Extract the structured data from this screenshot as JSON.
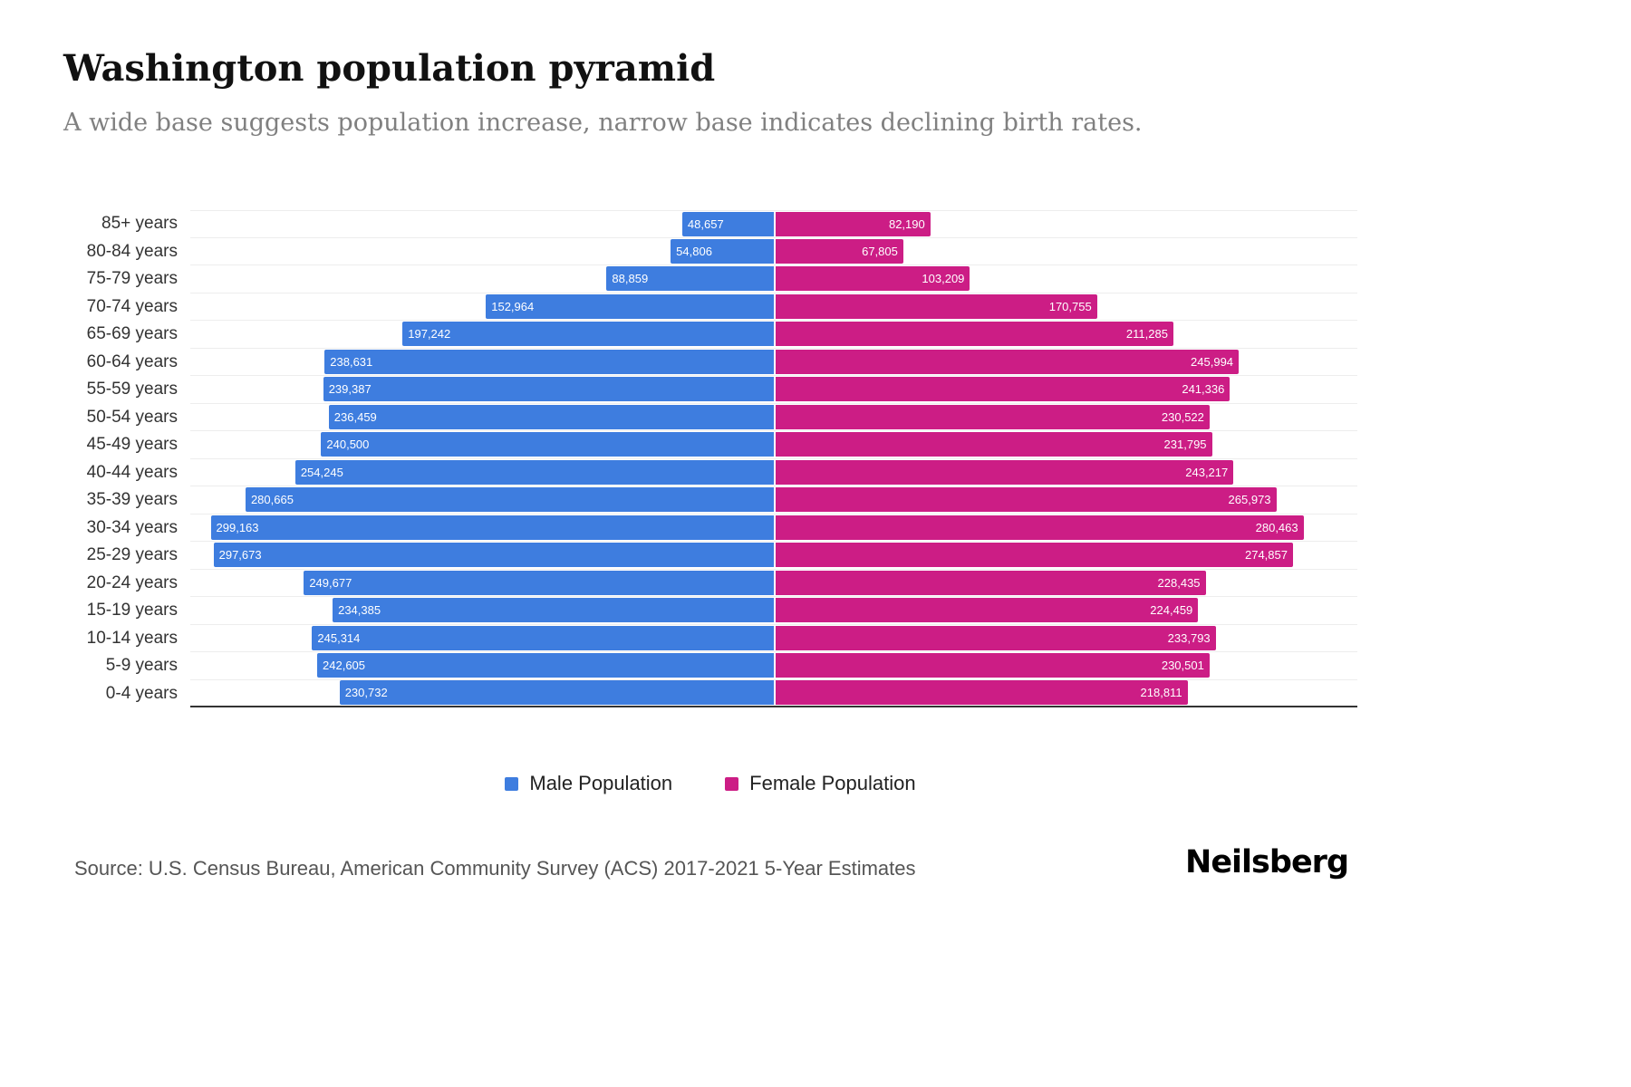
{
  "chart_data": {
    "type": "bar",
    "variant": "population-pyramid",
    "title": "Washington population pyramid",
    "subtitle": "A wide base suggests population increase, narrow base indicates declining birth rates.",
    "categories": [
      "85+ years",
      "80-84 years",
      "75-79 years",
      "70-74 years",
      "65-69 years",
      "60-64 years",
      "55-59 years",
      "50-54 years",
      "45-49 years",
      "40-44 years",
      "35-39 years",
      "30-34 years",
      "25-29 years",
      "20-24 years",
      "15-19 years",
      "10-14 years",
      "5-9 years",
      "0-4 years"
    ],
    "series": [
      {
        "name": "Male Population",
        "color": "#3E7DDF",
        "values": [
          48657,
          54806,
          88859,
          152964,
          197242,
          238631,
          239387,
          236459,
          240500,
          254245,
          280665,
          299163,
          297673,
          249677,
          234385,
          245314,
          242605,
          230732
        ]
      },
      {
        "name": "Female Population",
        "color": "#CC1D85",
        "values": [
          82190,
          67805,
          103209,
          170755,
          211285,
          245994,
          241336,
          230522,
          231795,
          243217,
          265973,
          280463,
          274857,
          228435,
          224459,
          233793,
          230501,
          218811
        ]
      }
    ],
    "xlim": [
      0,
      310000
    ],
    "grid": true,
    "legend_position": "bottom"
  },
  "footer": {
    "source": "Source: U.S. Census Bureau, American Community Survey (ACS) 2017-2021 5-Year Estimates",
    "brand": "Neilsberg"
  }
}
